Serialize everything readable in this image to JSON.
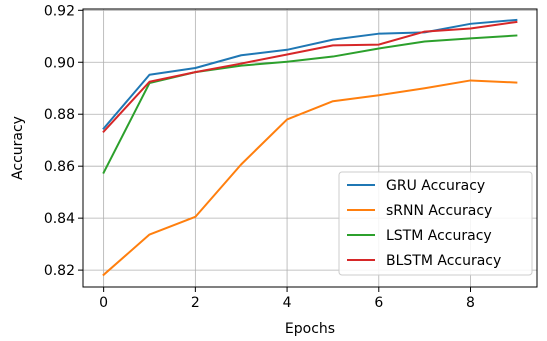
{
  "chart_data": {
    "type": "line",
    "title": "",
    "xlabel": "Epochs",
    "ylabel": "Accuracy",
    "x": [
      0,
      1,
      2,
      3,
      4,
      5,
      6,
      7,
      8,
      9
    ],
    "xlim": [
      -0.45,
      9.45
    ],
    "ylim": [
      0.8135,
      0.9205
    ],
    "xticks": [
      0,
      2,
      4,
      6,
      8
    ],
    "yticks": [
      0.82,
      0.84,
      0.86,
      0.88,
      0.9,
      0.92
    ],
    "xtick_labels": [
      "0",
      "2",
      "4",
      "6",
      "8"
    ],
    "ytick_labels": [
      "0.82",
      "0.84",
      "0.86",
      "0.88",
      "0.90",
      "0.92"
    ],
    "grid": true,
    "legend_position": "bottom-right",
    "series": [
      {
        "name": "GRU Accuracy",
        "color": "#1f77b4",
        "values": [
          0.8745,
          0.8952,
          0.8978,
          0.9027,
          0.9048,
          0.9087,
          0.911,
          0.9115,
          0.9148,
          0.9163
        ]
      },
      {
        "name": "sRNN Accuracy",
        "color": "#ff7f0e",
        "values": [
          0.8182,
          0.8337,
          0.8405,
          0.8607,
          0.878,
          0.885,
          0.8873,
          0.89,
          0.893,
          0.8922
        ]
      },
      {
        "name": "LSTM Accuracy",
        "color": "#2ca02c",
        "values": [
          0.8575,
          0.892,
          0.8962,
          0.8987,
          0.9002,
          0.9022,
          0.9053,
          0.908,
          0.9092,
          0.9103
        ]
      },
      {
        "name": "BLSTM Accuracy",
        "color": "#d62728",
        "values": [
          0.8733,
          0.8925,
          0.8962,
          0.8995,
          0.903,
          0.9065,
          0.9068,
          0.9118,
          0.913,
          0.9155
        ]
      }
    ]
  }
}
